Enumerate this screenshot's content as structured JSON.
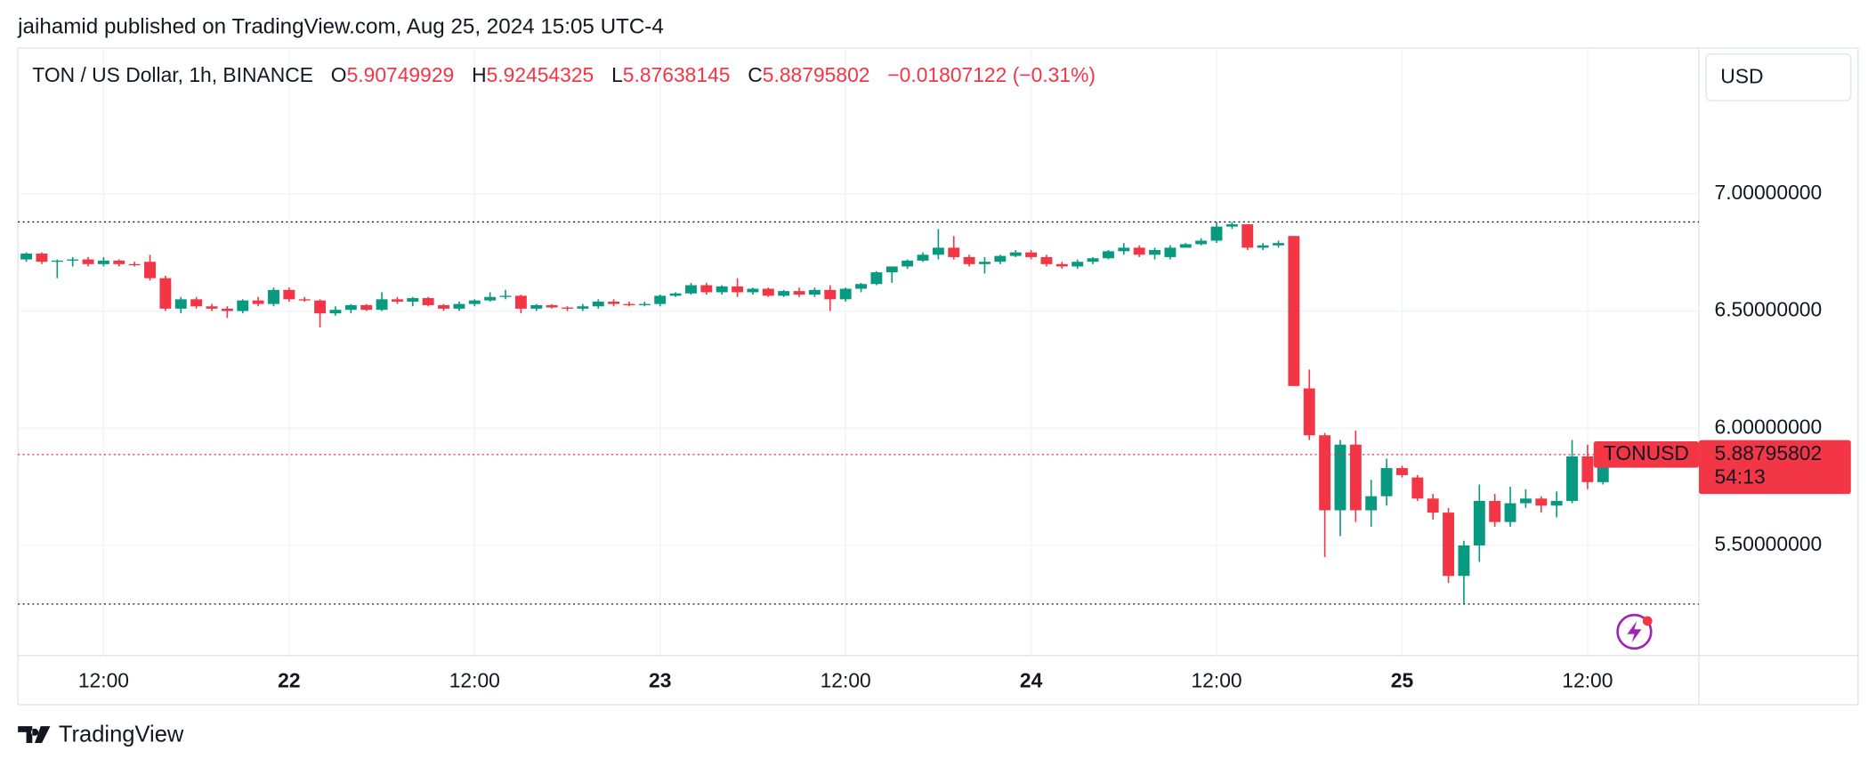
{
  "header": {
    "publisher": "jaihamid published on TradingView.com, Aug 25, 2024 15:05 UTC-4"
  },
  "footer": {
    "brand": "TradingView"
  },
  "currency": "USD",
  "chart_data": {
    "type": "candlestick",
    "title": "TON / US Dollar, 1h, BINANCE",
    "legend": {
      "open_label": "O",
      "open": "5.90749929",
      "high_label": "H",
      "high": "5.92454325",
      "low_label": "L",
      "low": "5.87638145",
      "close_label": "C",
      "close": "5.88795802",
      "change": "−0.01807122 (−0.31%)"
    },
    "symbol": "TONUSD",
    "countdown": "54:13",
    "last_price": {
      "value": 5.88795802,
      "label": "5.88795802"
    },
    "up_color": "#089981",
    "down_color": "#f23645",
    "grid": true,
    "categories": [
      null,
      null,
      null,
      null,
      null,
      "12:00",
      null,
      null,
      null,
      null,
      null,
      null,
      null,
      null,
      null,
      null,
      null,
      "22",
      null,
      null,
      null,
      null,
      null,
      null,
      null,
      null,
      null,
      null,
      null,
      "12:00",
      null,
      null,
      null,
      null,
      null,
      null,
      null,
      null,
      null,
      null,
      null,
      "23",
      null,
      null,
      null,
      null,
      null,
      null,
      null,
      null,
      null,
      null,
      null,
      "12:00",
      null,
      null,
      null,
      null,
      null,
      null,
      null,
      null,
      null,
      null,
      null,
      "24",
      null,
      null,
      null,
      null,
      null,
      null,
      null,
      null,
      null,
      null,
      null,
      "12:00",
      null,
      null,
      null,
      null,
      null,
      null,
      null,
      null,
      null,
      null,
      null,
      "25",
      null,
      null,
      null,
      null,
      null,
      null,
      null,
      null,
      null,
      null,
      null,
      "12:00",
      null,
      null
    ],
    "open": [
      6.72,
      6.745,
      6.71,
      6.715,
      6.72,
      6.7,
      6.715,
      6.7,
      6.71,
      6.64,
      6.51,
      6.55,
      6.52,
      6.51,
      6.5,
      6.545,
      6.53,
      6.59,
      6.55,
      6.545,
      6.49,
      6.505,
      6.525,
      6.505,
      6.55,
      6.54,
      6.555,
      6.525,
      6.51,
      6.53,
      6.545,
      6.56,
      6.565,
      6.51,
      6.525,
      6.515,
      6.51,
      6.52,
      6.54,
      6.53,
      6.525,
      6.53,
      6.565,
      6.575,
      6.61,
      6.58,
      6.605,
      6.58,
      6.595,
      6.565,
      6.585,
      6.57,
      6.59,
      6.55,
      6.595,
      6.615,
      6.665,
      6.69,
      6.715,
      6.74,
      6.77,
      6.73,
      6.7,
      6.71,
      6.735,
      6.75,
      6.73,
      6.7,
      6.69,
      6.71,
      6.725,
      6.755,
      6.77,
      6.74,
      6.73,
      6.77,
      6.785,
      6.8,
      6.86,
      6.87,
      6.77,
      6.78,
      6.82,
      6.17,
      5.97,
      5.65,
      5.93,
      5.65,
      5.71,
      5.83,
      5.79,
      5.7,
      5.64,
      5.37,
      5.5,
      5.69,
      5.6,
      5.68,
      5.7,
      5.67,
      5.69,
      5.88,
      5.77,
      5.9075
    ],
    "high": [
      6.75,
      6.75,
      6.72,
      6.73,
      6.73,
      6.73,
      6.72,
      6.71,
      6.74,
      6.65,
      6.56,
      6.56,
      6.53,
      6.52,
      6.55,
      6.56,
      6.6,
      6.6,
      6.56,
      6.55,
      6.52,
      6.53,
      6.53,
      6.58,
      6.56,
      6.56,
      6.56,
      6.53,
      6.54,
      6.55,
      6.58,
      6.59,
      6.57,
      6.53,
      6.53,
      6.52,
      6.53,
      6.55,
      6.55,
      6.54,
      6.54,
      6.57,
      6.58,
      6.62,
      6.62,
      6.61,
      6.64,
      6.6,
      6.6,
      6.59,
      6.6,
      6.6,
      6.61,
      6.6,
      6.62,
      6.67,
      6.69,
      6.72,
      6.75,
      6.85,
      6.82,
      6.74,
      6.73,
      6.74,
      6.76,
      6.76,
      6.74,
      6.71,
      6.72,
      6.73,
      6.76,
      6.79,
      6.78,
      6.77,
      6.78,
      6.79,
      6.81,
      6.88,
      6.88,
      6.87,
      6.79,
      6.8,
      6.82,
      6.25,
      5.98,
      5.95,
      5.99,
      5.78,
      5.87,
      5.84,
      5.8,
      5.72,
      5.66,
      5.52,
      5.76,
      5.72,
      5.75,
      5.74,
      5.71,
      5.73,
      5.95,
      5.93,
      5.92,
      5.9245
    ],
    "low": [
      6.71,
      6.7,
      6.64,
      6.69,
      6.69,
      6.69,
      6.69,
      6.69,
      6.63,
      6.5,
      6.49,
      6.51,
      6.5,
      6.47,
      6.49,
      6.52,
      6.52,
      6.54,
      6.54,
      6.43,
      6.48,
      6.49,
      6.5,
      6.5,
      6.53,
      6.52,
      6.52,
      6.5,
      6.5,
      6.52,
      6.54,
      6.55,
      6.49,
      6.5,
      6.51,
      6.5,
      6.5,
      6.51,
      6.52,
      6.52,
      6.52,
      6.52,
      6.56,
      6.57,
      6.57,
      6.57,
      6.56,
      6.57,
      6.56,
      6.56,
      6.56,
      6.56,
      6.5,
      6.54,
      6.58,
      6.61,
      6.62,
      6.68,
      6.71,
      6.72,
      6.72,
      6.69,
      6.66,
      6.7,
      6.73,
      6.72,
      6.69,
      6.68,
      6.68,
      6.7,
      6.72,
      6.74,
      6.73,
      6.72,
      6.72,
      6.77,
      6.78,
      6.79,
      6.85,
      6.76,
      6.76,
      6.77,
      6.18,
      5.95,
      5.45,
      5.54,
      5.6,
      5.58,
      5.67,
      5.79,
      5.69,
      5.61,
      5.34,
      5.25,
      5.43,
      5.58,
      5.58,
      5.66,
      5.64,
      5.62,
      5.68,
      5.74,
      5.76,
      5.8764
    ],
    "close": [
      6.745,
      6.71,
      6.715,
      6.72,
      6.7,
      6.715,
      6.7,
      6.695,
      6.64,
      6.51,
      6.55,
      6.52,
      6.51,
      6.5,
      6.545,
      6.53,
      6.59,
      6.55,
      6.545,
      6.49,
      6.505,
      6.525,
      6.505,
      6.55,
      6.54,
      6.555,
      6.525,
      6.51,
      6.53,
      6.545,
      6.56,
      6.565,
      6.51,
      6.525,
      6.515,
      6.51,
      6.52,
      6.54,
      6.53,
      6.525,
      6.53,
      6.565,
      6.575,
      6.61,
      6.58,
      6.605,
      6.58,
      6.595,
      6.565,
      6.585,
      6.57,
      6.59,
      6.55,
      6.595,
      6.615,
      6.665,
      6.69,
      6.715,
      6.74,
      6.77,
      6.73,
      6.7,
      6.71,
      6.735,
      6.75,
      6.73,
      6.7,
      6.69,
      6.71,
      6.725,
      6.755,
      6.77,
      6.74,
      6.76,
      6.77,
      6.785,
      6.8,
      6.86,
      6.87,
      6.77,
      6.78,
      6.79,
      6.18,
      5.97,
      5.65,
      5.93,
      5.65,
      5.71,
      5.83,
      5.8,
      5.7,
      5.64,
      5.37,
      5.5,
      5.69,
      5.6,
      5.68,
      5.7,
      5.67,
      5.69,
      5.88,
      5.77,
      5.906,
      5.888
    ],
    "ylim": [
      5.03,
      7.622
    ],
    "yticks": [
      {
        "value": 5.5,
        "label": "5.50000000"
      },
      {
        "value": 6,
        "label": "6.00000000"
      },
      {
        "value": 6.5,
        "label": "6.50000000"
      },
      {
        "value": 7,
        "label": "7.00000000"
      }
    ]
  }
}
